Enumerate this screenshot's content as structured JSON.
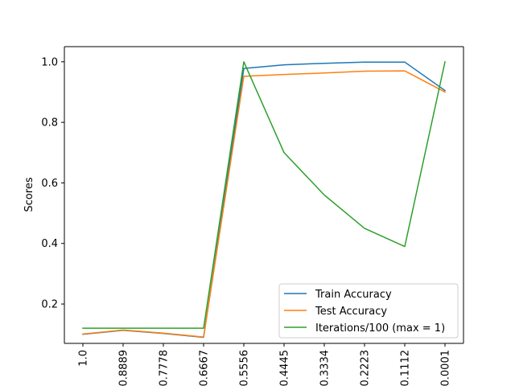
{
  "chart_data": {
    "type": "line",
    "title": "",
    "xlabel": "",
    "ylabel": "Scores",
    "categories": [
      "1.0",
      "0.8889",
      "0.7778",
      "0.6667",
      "0.5556",
      "0.4445",
      "0.3334",
      "0.2223",
      "0.1112",
      "0.0001"
    ],
    "ylim": [
      0.07,
      1.05
    ],
    "yticks": [
      0.2,
      0.4,
      0.6,
      0.8,
      1.0
    ],
    "ytick_labels": [
      "0.2",
      "0.4",
      "0.6",
      "0.8",
      "1.0"
    ],
    "grid": false,
    "legend_position": "lower-right",
    "series": [
      {
        "name": "Train Accuracy",
        "color": "#1f77b4",
        "values": [
          0.1,
          0.113,
          0.103,
          0.09,
          0.978,
          0.99,
          0.995,
          0.999,
          0.999,
          0.905
        ]
      },
      {
        "name": "Test Accuracy",
        "color": "#ff7f0e",
        "values": [
          0.101,
          0.114,
          0.104,
          0.091,
          0.952,
          0.958,
          0.963,
          0.969,
          0.97,
          0.9
        ]
      },
      {
        "name": "Iterations/100 (max = 1)",
        "color": "#2ca02c",
        "values": [
          0.12,
          0.12,
          0.12,
          0.12,
          1.0,
          0.7,
          0.56,
          0.45,
          0.39,
          1.0
        ]
      }
    ]
  }
}
